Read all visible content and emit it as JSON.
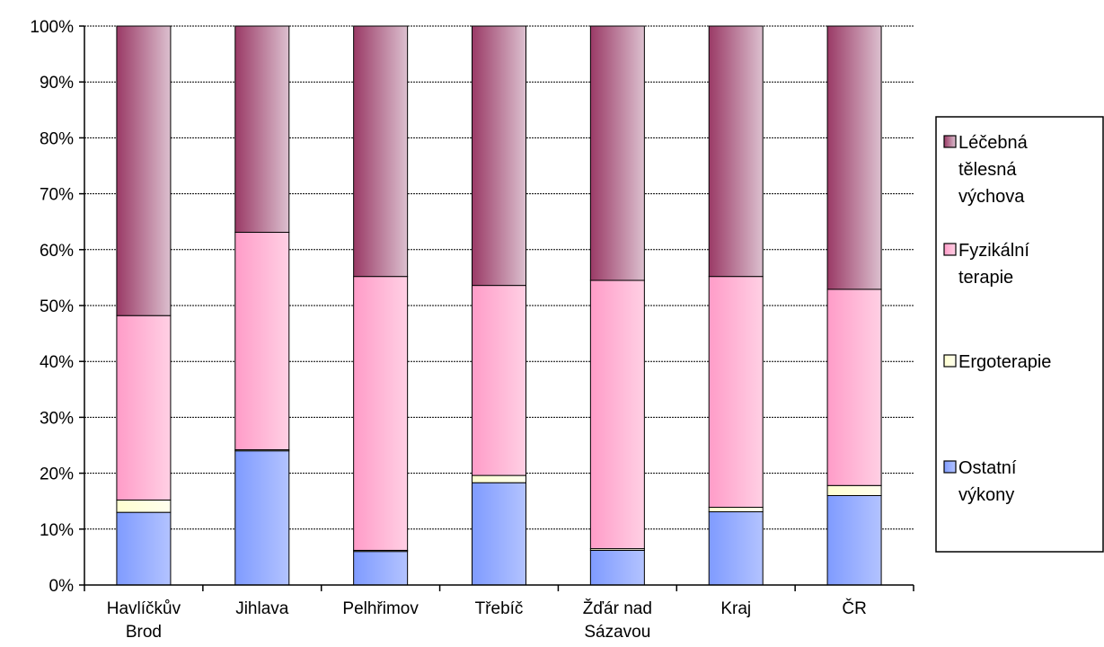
{
  "chart_data": {
    "type": "bar",
    "stacked": true,
    "percent_stacked": true,
    "categories": [
      "Havlíčkův Brod",
      "Jihlava",
      "Pelhřimov",
      "Třebíč",
      "Žďár nad Sázavou",
      "Kraj",
      "ČR"
    ],
    "category_lines": [
      [
        "Havlíčkův",
        "Brod"
      ],
      [
        "Jihlava"
      ],
      [
        "Pelhřimov"
      ],
      [
        "Třebíč"
      ],
      [
        "Žďár nad",
        "Sázavou"
      ],
      [
        "Kraj"
      ],
      [
        "ČR"
      ]
    ],
    "y_ticks": [
      "0%",
      "10%",
      "20%",
      "30%",
      "40%",
      "50%",
      "60%",
      "70%",
      "80%",
      "90%",
      "100%"
    ],
    "ylim": [
      0,
      100
    ],
    "grid": true,
    "legend_position": "right",
    "series": [
      {
        "name": "Ostatní výkony",
        "legend_lines": [
          "Ostatní",
          "výkony"
        ],
        "color": "#7f9bff",
        "color_light": "#b3c3ff",
        "values": [
          13.0,
          24.0,
          6.0,
          18.3,
          6.2,
          13.1,
          16.0
        ]
      },
      {
        "name": "Ergoterapie",
        "legend_lines": [
          "Ergoterapie"
        ],
        "color": "#ffffd0",
        "color_light": "#ffffee",
        "values": [
          2.2,
          0.2,
          0.2,
          1.3,
          0.3,
          0.8,
          1.8
        ]
      },
      {
        "name": "Fyzikální terapie",
        "legend_lines": [
          "Fyzikální",
          "terapie"
        ],
        "color": "#ff9cc8",
        "color_light": "#ffd0e4",
        "values": [
          33.0,
          38.9,
          49.0,
          34.0,
          48.0,
          41.3,
          35.1
        ]
      },
      {
        "name": "Léčebná tělesná výchova",
        "legend_lines": [
          "Léčebná",
          "tělesná",
          "výchova"
        ],
        "color": "#9a3a66",
        "color_light": "#dcc0cf",
        "values": [
          51.8,
          36.9,
          44.8,
          46.4,
          45.5,
          44.8,
          47.1
        ]
      }
    ]
  }
}
